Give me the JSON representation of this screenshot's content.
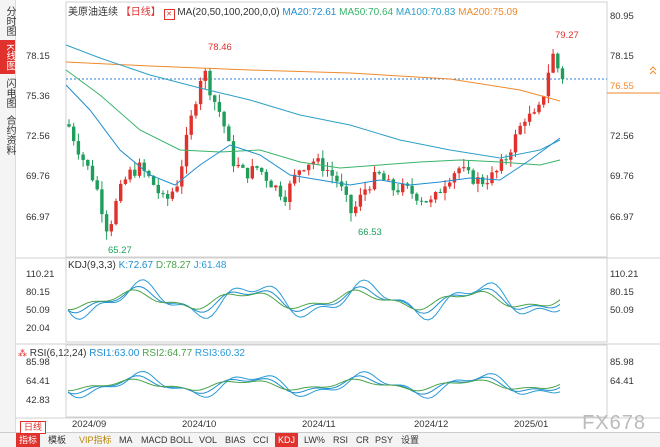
{
  "sidebar": {
    "tabs": [
      {
        "label": "分时图",
        "active": false
      },
      {
        "label": "K线图",
        "active": true
      },
      {
        "label": "闪电图",
        "active": false
      },
      {
        "label": "合约资料",
        "active": false
      }
    ]
  },
  "header": {
    "symbol": "美原油连续",
    "period": "【日线】",
    "ma_label": "MA(20,50,100,200,0,0)",
    "ma20": "MA20:72.61",
    "ma50": "MA50:70.64",
    "ma100": "MA100:70.83",
    "ma200": "MA200:75.09"
  },
  "price_axis": [
    "80.95",
    "78.15",
    "75.36",
    "72.56",
    "69.76",
    "66.97"
  ],
  "price_markers": {
    "high_left": "78.46",
    "high_right": "79.27",
    "low_left": "65.27",
    "low_mid": "66.53",
    "current": "76.55"
  },
  "kdj": {
    "label": "KDJ(9,3,3)",
    "k": "K:72.67",
    "d": "D:78.27",
    "j": "J:61.48",
    "axis": [
      "110.21",
      "80.15",
      "50.09",
      "20.04"
    ]
  },
  "rsi": {
    "label": "RSI(6,12,24)",
    "rsi1": "RSI1:63.00",
    "rsi2": "RSI2:64.77",
    "rsi3": "RSI3:60.32",
    "axis": [
      "85.98",
      "64.41",
      "42.83"
    ]
  },
  "dates": [
    "2024/09",
    "2024/10",
    "2024/11",
    "2024/12",
    "2025/01"
  ],
  "toolbar": {
    "period_select": "日线",
    "items": [
      "指标",
      "模板",
      "VIP指标",
      "MA",
      "MACD",
      "BOLL",
      "VOL",
      "BIAS",
      "CCI",
      "KDJ",
      "LW%",
      "RSI",
      "CR",
      "PSY",
      "设置"
    ],
    "active": "KDJ"
  },
  "watermark": "FX678",
  "colors": {
    "up": "#e0312d",
    "down": "#1e9e5a",
    "ma20": "#1f8ecf",
    "ma50": "#3ab36a",
    "ma100": "#2fa0c8",
    "ma200": "#f08a2c",
    "k": "#1f8ecf",
    "d": "#4aa34a",
    "j": "#2b9bd8"
  }
}
